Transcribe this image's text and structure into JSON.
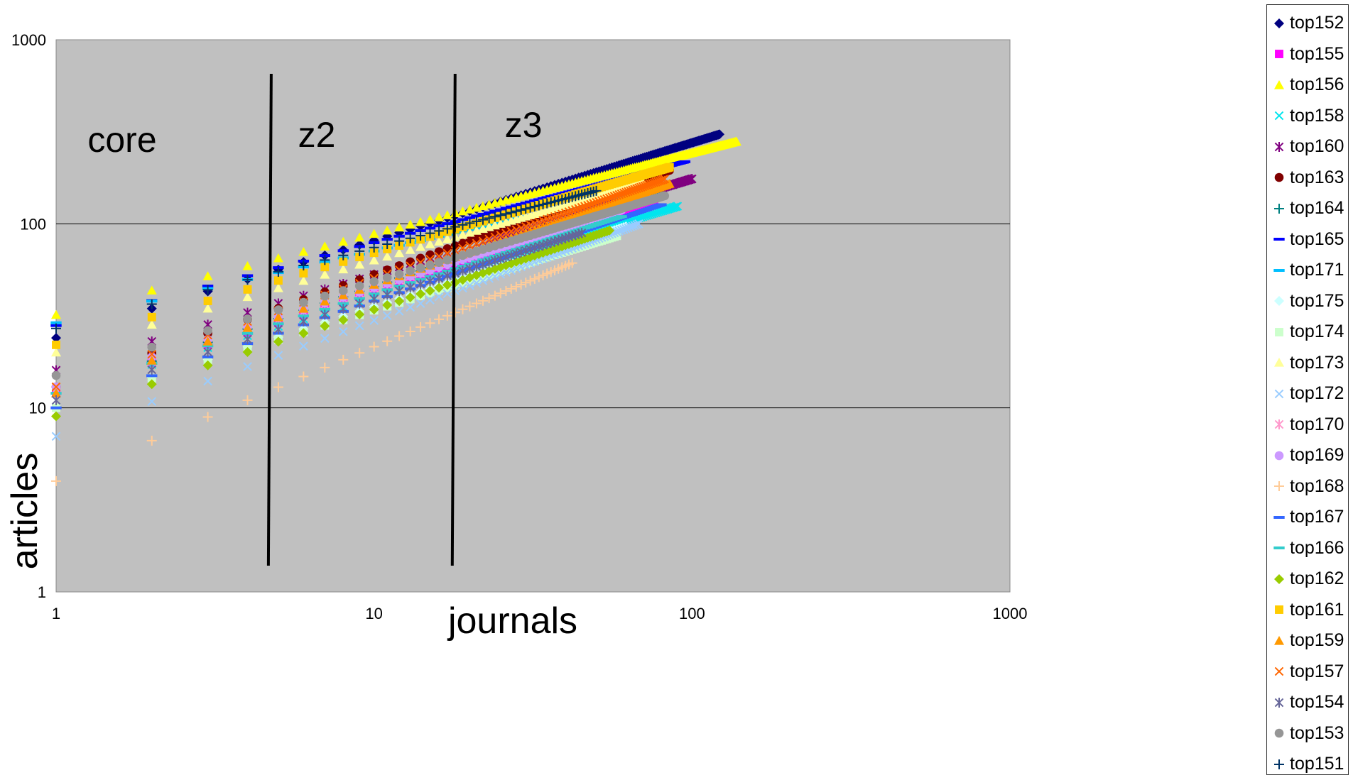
{
  "chart_data": {
    "type": "scatter",
    "xlabel": "journals",
    "ylabel": "articles",
    "x_scale": "log",
    "y_scale": "log",
    "xlim": [
      1,
      1000
    ],
    "ylim": [
      1,
      1000
    ],
    "x_ticks": [
      "1",
      "10",
      "100",
      "1000"
    ],
    "y_ticks": [
      "1",
      "10",
      "100",
      "1000"
    ],
    "grid": "horizontal major gridlines",
    "plot_background": "#c0c0c0",
    "legend_position": "right",
    "zones": [
      {
        "label": "core"
      },
      {
        "label": "z2",
        "boundary_x": 4.7
      },
      {
        "label": "z3",
        "boundary_x": 17.8
      }
    ],
    "series": [
      {
        "name": "top152",
        "color": "#000080",
        "marker": "diamond",
        "first": 24,
        "slope": 0.53,
        "max_x": 122
      },
      {
        "name": "top155",
        "color": "#ff00ff",
        "marker": "square",
        "first": 12,
        "slope": 0.55,
        "max_x": 76
      },
      {
        "name": "top156",
        "color": "#ffff00",
        "marker": "triangle",
        "first": 32,
        "slope": 0.44,
        "max_x": 138
      },
      {
        "name": "top158",
        "color": "#00e5ee",
        "marker": "x",
        "first": 12,
        "slope": 0.52,
        "max_x": 90
      },
      {
        "name": "top160",
        "color": "#800080",
        "marker": "star",
        "first": 16,
        "slope": 0.52,
        "max_x": 100
      },
      {
        "name": "top163",
        "color": "#800000",
        "marker": "circle",
        "first": 13,
        "slope": 0.61,
        "max_x": 85
      },
      {
        "name": "top164",
        "color": "#008080",
        "marker": "plus",
        "first": 12,
        "slope": 0.58,
        "max_x": 78
      },
      {
        "name": "top165",
        "color": "#0000ff",
        "marker": "dash",
        "first": 28,
        "slope": 0.45,
        "max_x": 95
      },
      {
        "name": "top171",
        "color": "#00bfff",
        "marker": "dash",
        "first": 29,
        "slope": 0.39,
        "max_x": 68
      },
      {
        "name": "top175",
        "color": "#ccffff",
        "marker": "diamond",
        "first": 10,
        "slope": 0.55,
        "max_x": 62
      },
      {
        "name": "top174",
        "color": "#ccffcc",
        "marker": "square",
        "first": 10,
        "slope": 0.53,
        "max_x": 58
      },
      {
        "name": "top173",
        "color": "#ffff99",
        "marker": "triangle",
        "first": 20,
        "slope": 0.5,
        "max_x": 70
      },
      {
        "name": "top172",
        "color": "#99ccff",
        "marker": "x",
        "first": 7,
        "slope": 0.63,
        "max_x": 68
      },
      {
        "name": "top170",
        "color": "#ff99cc",
        "marker": "star",
        "first": 12,
        "slope": 0.57,
        "max_x": 72
      },
      {
        "name": "top169",
        "color": "#cc99ff",
        "marker": "circle",
        "first": 13,
        "slope": 0.54,
        "max_x": 60
      },
      {
        "name": "top168",
        "color": "#ffcc99",
        "marker": "plus",
        "first": 4,
        "slope": 0.73,
        "max_x": 42
      },
      {
        "name": "top167",
        "color": "#3366ff",
        "marker": "dash",
        "first": 10,
        "slope": 0.58,
        "max_x": 80
      },
      {
        "name": "top166",
        "color": "#33cccc",
        "marker": "dash",
        "first": 12,
        "slope": 0.54,
        "max_x": 60
      },
      {
        "name": "top162",
        "color": "#99cc00",
        "marker": "diamond",
        "first": 9,
        "slope": 0.58,
        "max_x": 55
      },
      {
        "name": "top161",
        "color": "#ffcc00",
        "marker": "square",
        "first": 22,
        "slope": 0.5,
        "max_x": 85
      },
      {
        "name": "top159",
        "color": "#ff9900",
        "marker": "triangle",
        "first": 12,
        "slope": 0.59,
        "max_x": 85
      },
      {
        "name": "top157",
        "color": "#ff6600",
        "marker": "x",
        "first": 13,
        "slope": 0.59,
        "max_x": 82
      },
      {
        "name": "top154",
        "color": "#666699",
        "marker": "star",
        "first": 11,
        "slope": 0.55,
        "max_x": 45
      },
      {
        "name": "top153",
        "color": "#969696",
        "marker": "circle",
        "first": 15,
        "slope": 0.51,
        "max_x": 82
      },
      {
        "name": "top151",
        "color": "#003366",
        "marker": "plus",
        "first": 27,
        "slope": 0.44,
        "max_x": 50
      }
    ]
  }
}
